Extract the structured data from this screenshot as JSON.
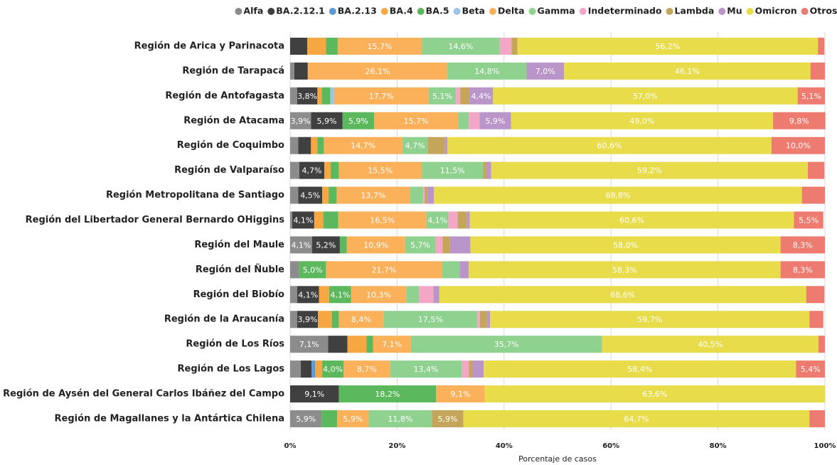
{
  "chart_data": {
    "type": "stacked_bar_horizontal",
    "x_label": "Porcentaje de casos",
    "categories": [
      "Región de Arica y Parinacota",
      "Región de Tarapacá",
      "Región de Antofagasta",
      "Región de Atacama",
      "Región de Coquimbo",
      "Región de Valparaíso",
      "Región Metropolitana de Santiago",
      "Región del Libertador General Bernardo OHiggins",
      "Región del Maule",
      "Región del Ñuble",
      "Región del Biobío",
      "Región de la Araucanía",
      "Región de Los Ríos",
      "Región de Los Lagos",
      "Región de Aysén del General Carlos Ibáñez del Campo",
      "Región de Magallanes y la Antártica Chilena"
    ],
    "xlim": [
      0,
      100
    ],
    "xticks": [
      {
        "value": 0,
        "label": "0%"
      },
      {
        "value": 20,
        "label": "20%"
      },
      {
        "value": 40,
        "label": "40%"
      },
      {
        "value": 60,
        "label": "60%"
      },
      {
        "value": 80,
        "label": "80%"
      },
      {
        "value": 100,
        "label": "100%"
      }
    ],
    "grid": true,
    "legend": "top",
    "series": [
      {
        "name": "Alfa",
        "color": "#8c8c8c",
        "values": [
          null,
          0.8,
          1.3,
          3.9,
          1.5,
          1.7,
          1.5,
          0.4,
          4.1,
          1.7,
          1.3,
          1.3,
          7.1,
          2.0,
          null,
          5.9
        ],
        "value_labels": [
          null,
          null,
          null,
          "3,9%",
          null,
          null,
          null,
          null,
          "4,1%",
          null,
          null,
          null,
          "7,1%",
          null,
          null,
          "5,9%"
        ]
      },
      {
        "name": "BA.2.12.1",
        "color": "#404040",
        "values": [
          3.2,
          2.5,
          3.8,
          5.9,
          2.4,
          4.7,
          4.5,
          4.1,
          5.2,
          null,
          4.1,
          3.9,
          3.6,
          2.0,
          9.1,
          null
        ],
        "value_labels": [
          null,
          null,
          "3,8%",
          "5,9%",
          null,
          "4,7%",
          "4,5%",
          "4,1%",
          "5,2%",
          null,
          "4,1%",
          "3,9%",
          null,
          null,
          "9,1%",
          null
        ]
      },
      {
        "name": "BA.2.13",
        "color": "#5b9bd5",
        "values": [
          null,
          null,
          null,
          null,
          null,
          null,
          null,
          null,
          null,
          null,
          null,
          null,
          null,
          0.7,
          null,
          null
        ]
      },
      {
        "name": "BA.4",
        "color": "#f5a742",
        "values": [
          3.5,
          null,
          0.8,
          null,
          1.2,
          1.2,
          1.2,
          1.7,
          null,
          null,
          1.9,
          2.6,
          3.6,
          1.3,
          null,
          null
        ]
      },
      {
        "name": "BA.5",
        "color": "#5cb85c",
        "values": [
          2.2,
          null,
          1.6,
          5.9,
          1.2,
          1.5,
          1.5,
          2.8,
          1.3,
          5.0,
          4.1,
          1.3,
          1.2,
          4.0,
          18.2,
          2.9
        ],
        "value_labels": [
          null,
          null,
          null,
          "5,9%",
          null,
          null,
          null,
          null,
          null,
          "5,0%",
          "4,1%",
          null,
          null,
          "4,0%",
          "18,2%",
          null
        ]
      },
      {
        "name": "Beta",
        "color": "#9dc3e6",
        "values": [
          null,
          null,
          0.7,
          null,
          null,
          null,
          null,
          null,
          null,
          null,
          null,
          null,
          null,
          null,
          null,
          null
        ]
      },
      {
        "name": "Delta",
        "color": "#fbb05a",
        "values": [
          15.7,
          26.1,
          17.7,
          15.7,
          14.7,
          15.5,
          13.7,
          16.5,
          10.9,
          21.7,
          10.3,
          8.4,
          7.1,
          8.7,
          9.1,
          5.9
        ],
        "value_labels": [
          "15,7%",
          "26,1%",
          "17,7%",
          "15,7%",
          "14,7%",
          "15,5%",
          "13,7%",
          "16,5%",
          "10,9%",
          "21,7%",
          "10,3%",
          "8,4%",
          "7,1%",
          "8,7%",
          "9,1%",
          "5,9%"
        ]
      },
      {
        "name": "Gamma",
        "color": "#8fd18f",
        "values": [
          14.6,
          14.8,
          5.1,
          2.0,
          4.7,
          11.5,
          2.5,
          4.1,
          5.7,
          3.3,
          2.4,
          17.5,
          35.7,
          13.4,
          null,
          11.8
        ],
        "value_labels": [
          "14,6%",
          "14,8%",
          "5,1%",
          null,
          "4,7%",
          "11,5%",
          null,
          "4,1%",
          "5,7%",
          null,
          null,
          "17,5%",
          "35,7%",
          "13,4%",
          null,
          "11,8%"
        ]
      },
      {
        "name": "Indeterminado",
        "color": "#f4a6c6",
        "values": [
          2.2,
          null,
          0.8,
          2.0,
          null,
          null,
          0.3,
          1.7,
          1.3,
          null,
          2.7,
          0.5,
          null,
          1.3,
          null,
          null
        ]
      },
      {
        "name": "Lambda",
        "color": "#c5a55a",
        "values": [
          1.1,
          null,
          1.7,
          null,
          3.2,
          0.6,
          0.5,
          1.7,
          1.4,
          null,
          null,
          1.3,
          null,
          0.7,
          null,
          5.9
        ],
        "value_labels": [
          null,
          null,
          null,
          null,
          null,
          null,
          null,
          null,
          null,
          null,
          null,
          null,
          null,
          null,
          null,
          "5,9%"
        ]
      },
      {
        "name": "Mu",
        "color": "#b995c9",
        "values": [
          null,
          7.0,
          4.4,
          5.9,
          0.5,
          0.9,
          1.2,
          0.6,
          3.8,
          1.7,
          1.1,
          0.6,
          null,
          2.1,
          null,
          null
        ],
        "value_labels": [
          null,
          "7,0%",
          "4,4%",
          "5,9%",
          null,
          null,
          null,
          null,
          null,
          null,
          null,
          null,
          null,
          null,
          null,
          null
        ]
      },
      {
        "name": "Omicron",
        "color": "#e9dc4a",
        "values": [
          56.2,
          46.1,
          57.0,
          49.0,
          60.6,
          59.2,
          68.8,
          60.6,
          58.0,
          58.3,
          68.6,
          59.7,
          40.5,
          58.4,
          63.6,
          64.7
        ],
        "value_labels": [
          "56,2%",
          "46,1%",
          "57,0%",
          "49,0%",
          "60,6%",
          "59,2%",
          "68,8%",
          "60,6%",
          "58,0%",
          "58,3%",
          "68,6%",
          "59,7%",
          "40,5%",
          "58,4%",
          "63,6%",
          "64,7%"
        ]
      },
      {
        "name": "Otros Linajes",
        "color": "#ee7b70",
        "values": [
          1.2,
          2.7,
          5.1,
          9.8,
          10.0,
          3.1,
          4.3,
          5.5,
          8.3,
          8.3,
          3.4,
          2.6,
          1.2,
          5.4,
          null,
          2.9
        ],
        "value_labels": [
          null,
          null,
          "5,1%",
          "9,8%",
          "10,0%",
          null,
          null,
          "5,5%",
          "8,3%",
          "8,3%",
          null,
          null,
          null,
          "5,4%",
          null,
          null
        ]
      }
    ]
  }
}
